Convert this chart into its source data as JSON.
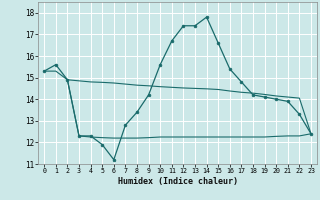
{
  "xlabel": "Humidex (Indice chaleur)",
  "background_color": "#cce8e8",
  "grid_color": "#ffffff",
  "line_color": "#1a6b6b",
  "xlim": [
    -0.5,
    23.5
  ],
  "ylim": [
    11,
    18.5
  ],
  "yticks": [
    11,
    12,
    13,
    14,
    15,
    16,
    17,
    18
  ],
  "xticks": [
    0,
    1,
    2,
    3,
    4,
    5,
    6,
    7,
    8,
    9,
    10,
    11,
    12,
    13,
    14,
    15,
    16,
    17,
    18,
    19,
    20,
    21,
    22,
    23
  ],
  "series1_x": [
    0,
    1,
    2,
    3,
    4,
    5,
    6,
    7,
    8,
    9,
    10,
    11,
    12,
    13,
    14,
    15,
    16,
    17,
    18,
    19,
    20,
    21,
    22,
    23
  ],
  "series1_y": [
    15.3,
    15.6,
    14.9,
    12.3,
    12.3,
    11.9,
    11.2,
    12.8,
    13.4,
    14.2,
    15.6,
    16.7,
    17.4,
    17.4,
    17.8,
    16.6,
    15.4,
    14.8,
    14.2,
    14.1,
    14.0,
    13.9,
    13.3,
    12.4
  ],
  "series2_x": [
    0,
    1,
    2,
    3,
    4,
    5,
    6,
    7,
    8,
    9,
    10,
    11,
    12,
    13,
    14,
    15,
    16,
    17,
    18,
    19,
    20,
    21,
    22,
    23
  ],
  "series2_y": [
    15.3,
    15.3,
    14.9,
    14.85,
    14.8,
    14.78,
    14.75,
    14.7,
    14.65,
    14.62,
    14.58,
    14.55,
    14.52,
    14.5,
    14.48,
    14.45,
    14.38,
    14.32,
    14.28,
    14.22,
    14.15,
    14.1,
    14.05,
    12.4
  ],
  "series3_x": [
    2,
    3,
    4,
    5,
    6,
    7,
    8,
    9,
    10,
    11,
    12,
    13,
    14,
    15,
    16,
    17,
    18,
    19,
    20,
    21,
    22,
    23
  ],
  "series3_y": [
    14.9,
    12.3,
    12.25,
    12.22,
    12.2,
    12.2,
    12.2,
    12.22,
    12.25,
    12.25,
    12.25,
    12.25,
    12.25,
    12.25,
    12.25,
    12.25,
    12.25,
    12.25,
    12.28,
    12.3,
    12.3,
    12.4
  ]
}
